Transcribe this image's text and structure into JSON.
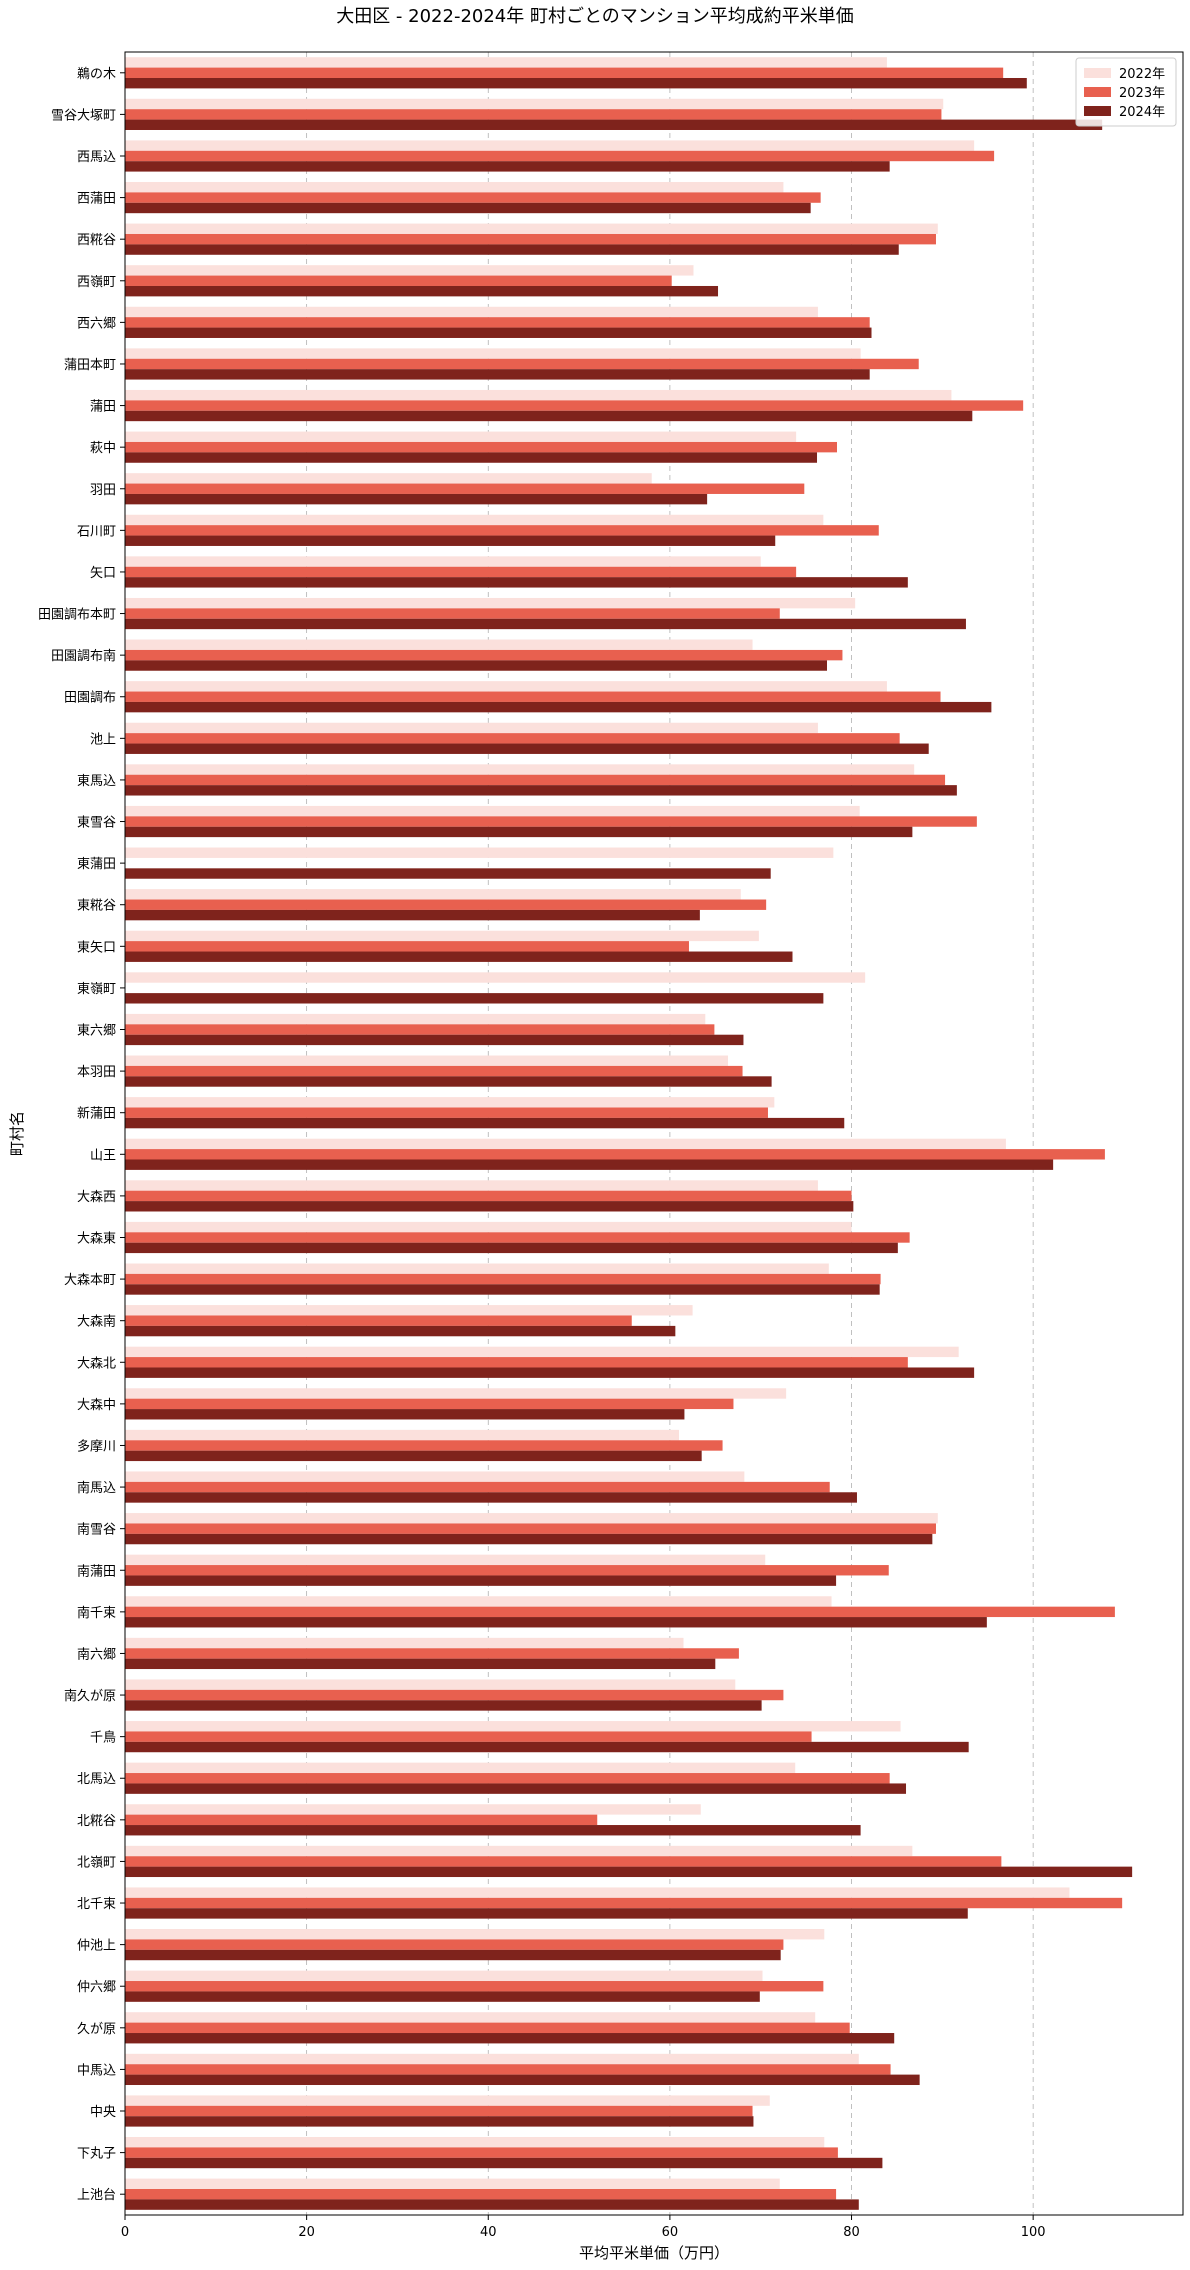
{
  "chart_data": {
    "type": "bar",
    "orientation": "horizontal",
    "title": "大田区 - 2022-2024年 町村ごとのマンション平均成約平米単価",
    "xlabel": "平均平米単価（万円）",
    "ylabel": "町村名",
    "xlim": [
      0,
      116.5
    ],
    "xticks": [
      0,
      20,
      40,
      60,
      80,
      100
    ],
    "grid": "x-dashed",
    "legend_position": "top-right",
    "categories": [
      "鵜の木",
      "雪谷大塚町",
      "西馬込",
      "西蒲田",
      "西糀谷",
      "西嶺町",
      "西六郷",
      "蒲田本町",
      "蒲田",
      "萩中",
      "羽田",
      "石川町",
      "矢口",
      "田園調布本町",
      "田園調布南",
      "田園調布",
      "池上",
      "東馬込",
      "東雪谷",
      "東蒲田",
      "東糀谷",
      "東矢口",
      "東嶺町",
      "東六郷",
      "本羽田",
      "新蒲田",
      "山王",
      "大森西",
      "大森東",
      "大森本町",
      "大森南",
      "大森北",
      "大森中",
      "多摩川",
      "南馬込",
      "南雪谷",
      "南蒲田",
      "南千束",
      "南六郷",
      "南久が原",
      "千鳥",
      "北馬込",
      "北糀谷",
      "北嶺町",
      "北千束",
      "仲池上",
      "仲六郷",
      "久が原",
      "中馬込",
      "中央",
      "下丸子",
      "上池台"
    ],
    "series": [
      {
        "name": "2022年",
        "color": "#fbe0dc",
        "values": [
          83.9,
          90.1,
          93.5,
          72.5,
          89.5,
          62.6,
          76.3,
          81.0,
          91.0,
          73.9,
          58.0,
          76.9,
          70.0,
          80.4,
          69.1,
          83.9,
          76.3,
          86.9,
          80.9,
          78.0,
          67.8,
          69.8,
          81.5,
          63.9,
          66.4,
          71.5,
          97.0,
          76.3,
          80.0,
          77.5,
          62.5,
          91.8,
          72.8,
          61.0,
          68.2,
          89.5,
          70.5,
          77.8,
          61.5,
          67.2,
          85.4,
          73.8,
          63.4,
          86.7,
          104.0,
          77.0,
          70.2,
          76.0,
          80.8,
          71.0,
          77.0,
          72.1
        ]
      },
      {
        "name": "2023年",
        "color": "#e8604f",
        "values": [
          96.7,
          89.9,
          95.7,
          76.6,
          89.3,
          60.2,
          82.0,
          87.4,
          98.9,
          78.4,
          74.8,
          83.0,
          73.9,
          72.1,
          79.0,
          89.8,
          85.3,
          90.3,
          93.8,
          null,
          70.6,
          62.1,
          null,
          64.9,
          68.0,
          70.8,
          107.9,
          80.0,
          86.4,
          83.2,
          55.8,
          86.2,
          67.0,
          65.8,
          77.6,
          89.3,
          84.1,
          109.0,
          67.6,
          72.5,
          75.6,
          84.2,
          52.0,
          96.5,
          109.8,
          72.5,
          76.9,
          79.8,
          84.3,
          69.1,
          78.5,
          78.3
        ]
      },
      {
        "name": "2024年",
        "color": "#7f231c",
        "values": [
          99.3,
          107.6,
          84.2,
          75.5,
          85.2,
          65.3,
          82.2,
          82.0,
          93.3,
          76.2,
          64.1,
          71.6,
          86.2,
          92.6,
          77.3,
          95.4,
          88.5,
          91.6,
          86.7,
          71.1,
          63.3,
          73.5,
          76.9,
          68.1,
          71.2,
          79.2,
          102.2,
          80.2,
          85.1,
          83.1,
          60.6,
          93.5,
          61.6,
          63.5,
          80.6,
          88.9,
          78.3,
          94.9,
          65.0,
          70.1,
          92.9,
          86.0,
          81.0,
          110.9,
          92.8,
          72.2,
          69.9,
          84.7,
          87.5,
          69.2,
          83.4,
          80.8
        ]
      }
    ]
  }
}
